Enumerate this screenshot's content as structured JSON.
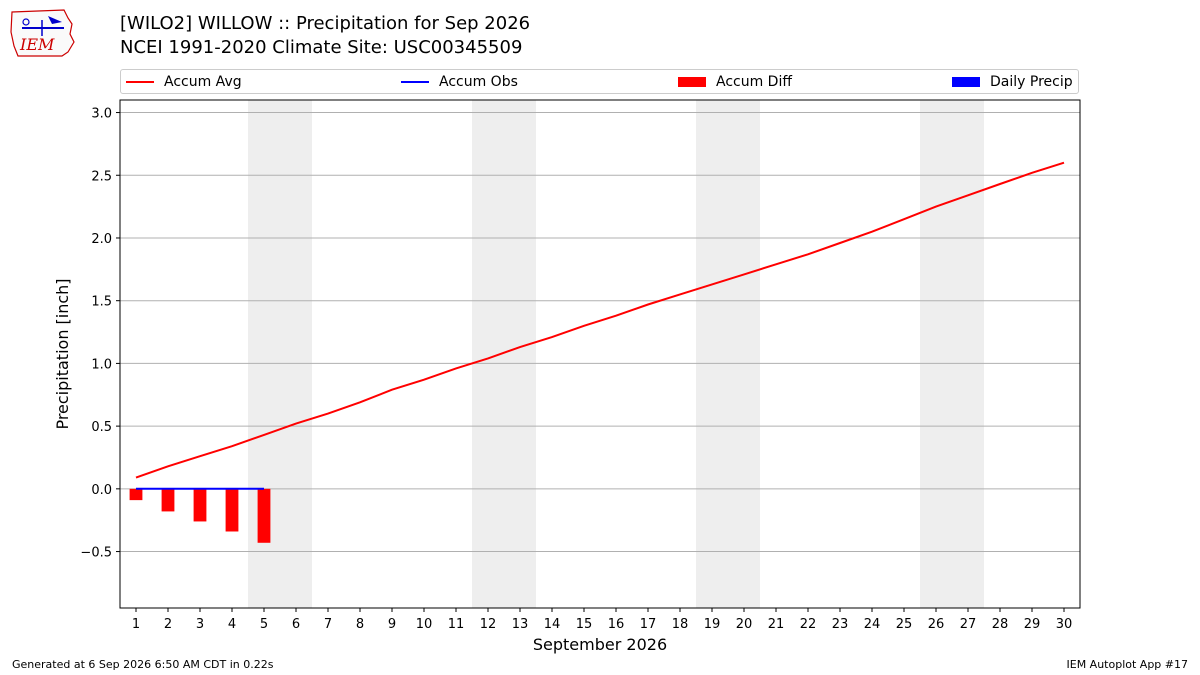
{
  "header": {
    "title_line1": "[WILO2] WILLOW :: Precipitation for Sep 2026",
    "title_line2": "NCEI 1991-2020 Climate Site: USC00345509"
  },
  "logo": {
    "text": "IEM",
    "color": "#cc0000"
  },
  "legend": {
    "items": [
      {
        "label": "Accum Avg",
        "kind": "line",
        "color": "#ff0000"
      },
      {
        "label": "Accum Obs",
        "kind": "line",
        "color": "#0000ff"
      },
      {
        "label": "Accum Diff",
        "kind": "box",
        "color": "#ff0000"
      },
      {
        "label": "Daily Precip",
        "kind": "box",
        "color": "#0000ff"
      }
    ]
  },
  "chart_data": {
    "type": "line",
    "xlabel": "September 2026",
    "ylabel": "Precipitation [inch]",
    "xlim": [
      0.5,
      30.5
    ],
    "ylim": [
      -0.95,
      3.1
    ],
    "yticks": [
      -0.5,
      0.0,
      0.5,
      1.0,
      1.5,
      2.0,
      2.5,
      3.0
    ],
    "ytick_labels": [
      "−0.5",
      "0.0",
      "0.5",
      "1.0",
      "1.5",
      "2.0",
      "2.5",
      "3.0"
    ],
    "xticks": [
      1,
      2,
      3,
      4,
      5,
      6,
      7,
      8,
      9,
      10,
      11,
      12,
      13,
      14,
      15,
      16,
      17,
      18,
      19,
      20,
      21,
      22,
      23,
      24,
      25,
      26,
      27,
      28,
      29,
      30
    ],
    "grid": "horizontal",
    "weekend_shading": [
      [
        4.5,
        6.5
      ],
      [
        11.5,
        13.5
      ],
      [
        18.5,
        20.5
      ],
      [
        25.5,
        27.5
      ]
    ],
    "shading_color": "#eeeeee",
    "series": [
      {
        "name": "Accum Avg",
        "kind": "line",
        "color": "#ff0000",
        "x": [
          1,
          2,
          3,
          4,
          5,
          6,
          7,
          8,
          9,
          10,
          11,
          12,
          13,
          14,
          15,
          16,
          17,
          18,
          19,
          20,
          21,
          22,
          23,
          24,
          25,
          26,
          27,
          28,
          29,
          30
        ],
        "values": [
          0.09,
          0.18,
          0.26,
          0.34,
          0.43,
          0.52,
          0.6,
          0.69,
          0.79,
          0.87,
          0.96,
          1.04,
          1.13,
          1.21,
          1.3,
          1.38,
          1.47,
          1.55,
          1.63,
          1.71,
          1.79,
          1.87,
          1.96,
          2.05,
          2.15,
          2.25,
          2.34,
          2.43,
          2.52,
          2.6
        ]
      },
      {
        "name": "Accum Obs",
        "kind": "line",
        "color": "#0000ff",
        "x": [
          1,
          2,
          3,
          4,
          5
        ],
        "values": [
          0.0,
          0.0,
          0.0,
          0.0,
          0.0
        ]
      },
      {
        "name": "Accum Diff",
        "kind": "bar",
        "color": "#ff0000",
        "x": [
          1,
          2,
          3,
          4,
          5
        ],
        "values": [
          -0.09,
          -0.18,
          -0.26,
          -0.34,
          -0.43
        ]
      },
      {
        "name": "Daily Precip",
        "kind": "bar",
        "color": "#0000ff",
        "x": [
          1,
          2,
          3,
          4,
          5
        ],
        "values": [
          0.0,
          0.0,
          0.0,
          0.0,
          0.0
        ]
      }
    ]
  },
  "footer": {
    "left": "Generated at 6 Sep 2026 6:50 AM CDT in 0.22s",
    "right": "IEM Autoplot App #17"
  }
}
